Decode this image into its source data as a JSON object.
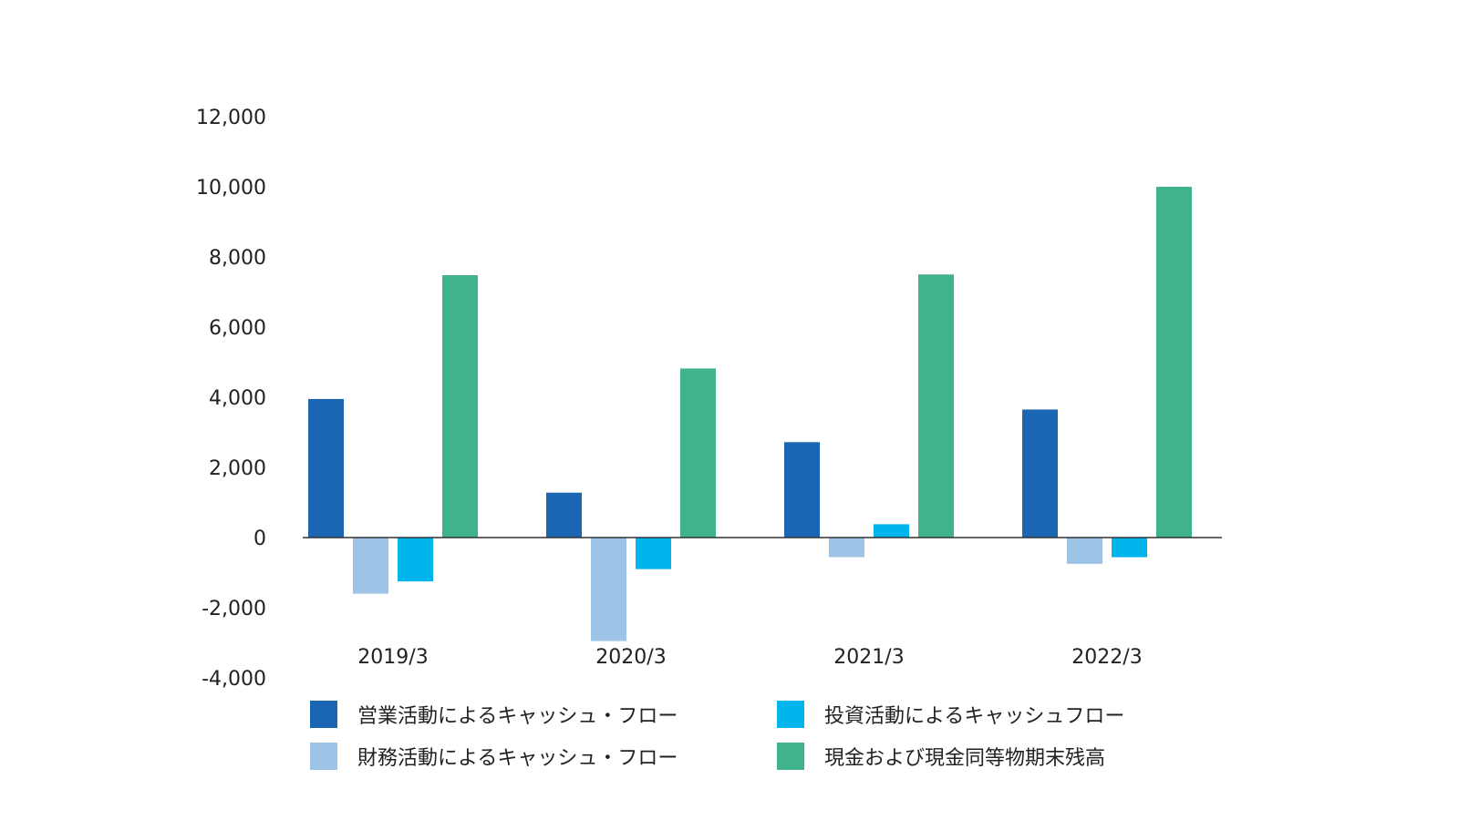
{
  "chart_data": {
    "type": "bar",
    "categories": [
      "2019/3",
      "2020/3",
      "2021/3",
      "2022/3"
    ],
    "series": [
      {
        "name": "営業活動によるキャッシュ・フロー",
        "color": "#1A66B3",
        "values": [
          3950,
          1280,
          2720,
          3650
        ]
      },
      {
        "name": "財務活動によるキャッシュ・フロー",
        "color": "#9DC3E6",
        "values": [
          -1600,
          -2950,
          -560,
          -750
        ]
      },
      {
        "name": "投資活動によるキャッシュフロー",
        "color": "#00B4EC",
        "values": [
          -1250,
          -900,
          380,
          -560
        ]
      },
      {
        "name": "現金および現金同等物期末残高",
        "color": "#41B38A",
        "values": [
          7480,
          4820,
          7500,
          10000
        ]
      }
    ],
    "ylim": [
      -4000,
      12000
    ],
    "yticks": [
      12000,
      10000,
      8000,
      6000,
      4000,
      2000,
      0,
      -2000,
      -4000
    ],
    "ytick_labels": [
      "12,000",
      "10,000",
      "8,000",
      "6,000",
      "4,000",
      "2,000",
      "0",
      "-2,000",
      "-4,000"
    ],
    "grid": false,
    "legend_position": "bottom",
    "title": "",
    "xlabel": "",
    "ylabel": ""
  }
}
